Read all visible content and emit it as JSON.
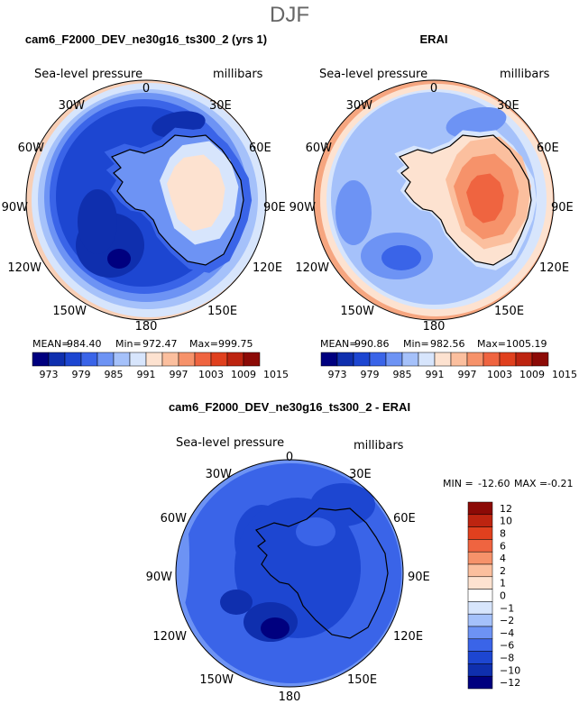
{
  "title": "DJF",
  "chart_data": [
    {
      "type": "polar-contour",
      "title": "cam6_F2000_DEV_ne30g16_ts300_2 (yrs 1)",
      "variable": "Sea-level pressure",
      "units": "millibars",
      "projection": "south polar stereographic",
      "longitude_labels": [
        "0",
        "30E",
        "60E",
        "90E",
        "120E",
        "150E",
        "180",
        "150W",
        "120W",
        "90W",
        "60W",
        "30W"
      ],
      "stats": {
        "mean_label": "MEAN=",
        "mean": "984.40",
        "min_label": "Min=",
        "min": "972.47",
        "max_label": "Max=",
        "max": "999.75"
      },
      "colorbar": {
        "levels": [
          "973",
          "979",
          "985",
          "991",
          "997",
          "1003",
          "1009",
          "1015"
        ],
        "colors": [
          "#00007f",
          "#0f2fae",
          "#1d46d1",
          "#3a64e8",
          "#6d93f4",
          "#a5c1fa",
          "#d7e5fc",
          "#fde2d0",
          "#fbbf9e",
          "#f6926a",
          "#ef6440",
          "#e0401e",
          "#bd2410",
          "#8c0a06"
        ]
      }
    },
    {
      "type": "polar-contour",
      "title": "ERAI",
      "variable": "Sea-level pressure",
      "units": "millibars",
      "projection": "south polar stereographic",
      "longitude_labels": [
        "0",
        "30E",
        "60E",
        "90E",
        "120E",
        "150E",
        "180",
        "150W",
        "120W",
        "90W",
        "60W",
        "30W"
      ],
      "stats": {
        "mean_label": "MEAN=",
        "mean": "990.86",
        "min_label": "Min=",
        "min": "982.56",
        "max_label": "Max=",
        "max": "1005.19"
      },
      "colorbar": {
        "levels": [
          "973",
          "979",
          "985",
          "991",
          "997",
          "1003",
          "1009",
          "1015"
        ],
        "colors": [
          "#00007f",
          "#0f2fae",
          "#1d46d1",
          "#3a64e8",
          "#6d93f4",
          "#a5c1fa",
          "#d7e5fc",
          "#fde2d0",
          "#fbbf9e",
          "#f6926a",
          "#ef6440",
          "#e0401e",
          "#bd2410",
          "#8c0a06"
        ]
      }
    },
    {
      "type": "polar-contour",
      "title": "cam6_F2000_DEV_ne30g16_ts300_2 - ERAI",
      "variable": "Sea-level pressure",
      "units": "millibars",
      "projection": "south polar stereographic",
      "longitude_labels": [
        "0",
        "30E",
        "60E",
        "90E",
        "120E",
        "150E",
        "180",
        "150W",
        "120W",
        "90W",
        "60W",
        "30W"
      ],
      "stats": {
        "min_label": "MIN =",
        "min": "-12.60",
        "max_label": "MAX =",
        "max": "-0.21"
      },
      "colorbar": {
        "levels": [
          "12",
          "10",
          "8",
          "6",
          "4",
          "2",
          "1",
          "0",
          "−1",
          "−2",
          "−4",
          "−6",
          "−8",
          "−10",
          "−12"
        ],
        "colors": [
          "#8c0a06",
          "#bd2410",
          "#e0401e",
          "#ef6440",
          "#f6926a",
          "#fbbf9e",
          "#fde2d0",
          "#ffffff",
          "#d7e5fc",
          "#a5c1fa",
          "#6d93f4",
          "#3a64e8",
          "#1d46d1",
          "#0f2fae",
          "#00007f"
        ]
      }
    }
  ]
}
